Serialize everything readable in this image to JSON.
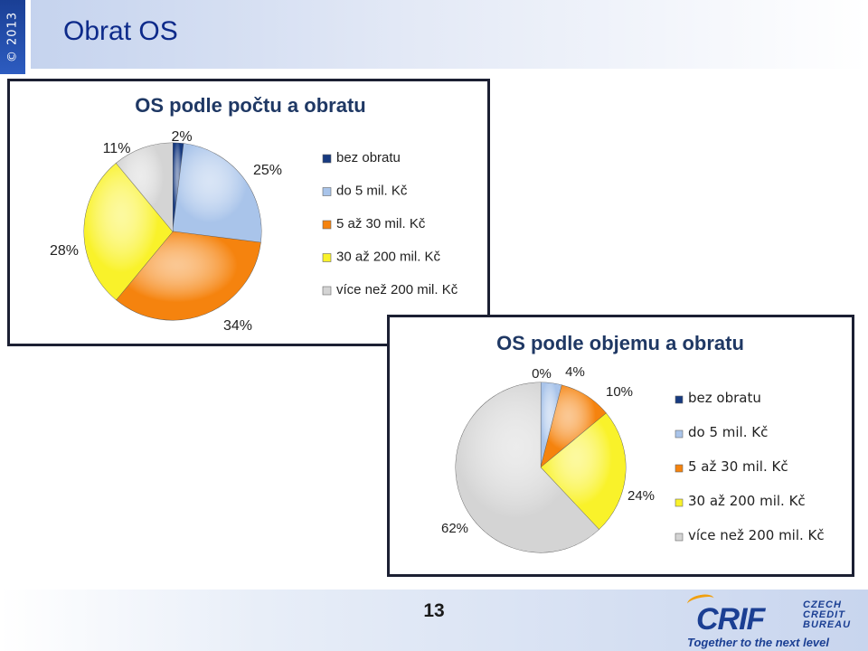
{
  "header": {
    "copyright": "© 2013",
    "title": "Obrat OS"
  },
  "footer": {
    "page_number": "13",
    "logo_text": "CRIF",
    "logo_sub": [
      "CZECH",
      "CREDIT",
      "BUREAU"
    ],
    "tagline": "Together to the next level"
  },
  "colors": {
    "bez_obratu": "#173a80",
    "do_5": "#a9c4ea",
    "5_30": "#f5830e",
    "30_200": "#f9f22a",
    "nad_200": "#d4d4d4"
  },
  "chart_data": [
    {
      "type": "pie",
      "title": "OS podle počtu a obratu",
      "categories": [
        "bez obratu",
        "do 5 mil. Kč",
        "5 až 30 mil. Kč",
        "30 až 200 mil. Kč",
        "více než 200 mil. Kč"
      ],
      "values": [
        2,
        25,
        34,
        28,
        11
      ],
      "labels": [
        "2%",
        "25%",
        "34%",
        "28%",
        "11%"
      ],
      "legend_position": "right"
    },
    {
      "type": "pie",
      "title": "OS podle objemu a obratu",
      "categories": [
        "bez obratu",
        "do 5 mil. Kč",
        "5 až 30 mil. Kč",
        "30 až 200 mil. Kč",
        "více než 200 mil. Kč"
      ],
      "values": [
        0,
        4,
        10,
        24,
        62
      ],
      "labels": [
        "0%",
        "4%",
        "10%",
        "24%",
        "62%"
      ],
      "legend_position": "right"
    }
  ]
}
